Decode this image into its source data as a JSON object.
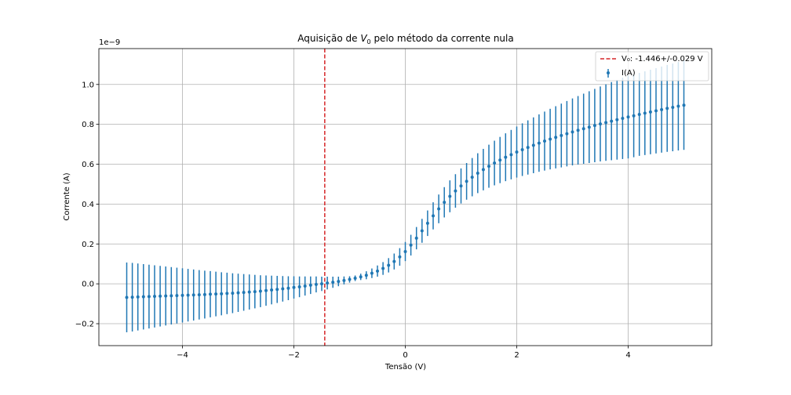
{
  "chart_data": {
    "type": "scatter",
    "title": "Aquisição de V₀ pelo método da corrente nula",
    "xlabel": "Tensão (V)",
    "ylabel": "Corrente (A)",
    "y_offset_text": "1e−9",
    "xlim": [
      -5.5,
      5.5
    ],
    "ylim": [
      -0.31,
      1.18
    ],
    "xticks": [
      -4,
      -2,
      0,
      2,
      4
    ],
    "xtick_labels": [
      "−4",
      "−2",
      "0",
      "2",
      "4"
    ],
    "yticks": [
      -0.2,
      0.0,
      0.2,
      0.4,
      0.6,
      0.8,
      1.0
    ],
    "ytick_labels": [
      "−0.2",
      "0.0",
      "0.2",
      "0.4",
      "0.6",
      "0.8",
      "1.0"
    ],
    "grid": true,
    "legend_position": "top-right",
    "colors": {
      "series": "#1f77b4",
      "vline": "#d62728",
      "grid": "#b0b0b0"
    },
    "vline": {
      "x": -1.446,
      "label": "V₀: -1.446+/-0.029 V"
    },
    "series": [
      {
        "name": "I(A)",
        "x": [
          -5.0,
          -4.9,
          -4.8,
          -4.7,
          -4.6,
          -4.5,
          -4.4,
          -4.3,
          -4.2,
          -4.1,
          -4.0,
          -3.9,
          -3.8,
          -3.7,
          -3.6,
          -3.5,
          -3.4,
          -3.3,
          -3.2,
          -3.1,
          -3.0,
          -2.9,
          -2.8,
          -2.7,
          -2.6,
          -2.5,
          -2.4,
          -2.3,
          -2.2,
          -2.1,
          -2.0,
          -1.9,
          -1.8,
          -1.7,
          -1.6,
          -1.5,
          -1.4,
          -1.3,
          -1.2,
          -1.1,
          -1.0,
          -0.9,
          -0.8,
          -0.7,
          -0.6,
          -0.5,
          -0.4,
          -0.3,
          -0.2,
          -0.1,
          0.0,
          0.1,
          0.2,
          0.3,
          0.4,
          0.5,
          0.6,
          0.7,
          0.8,
          0.9,
          1.0,
          1.1,
          1.2,
          1.3,
          1.4,
          1.5,
          1.6,
          1.7,
          1.8,
          1.9,
          2.0,
          2.1,
          2.2,
          2.3,
          2.4,
          2.5,
          2.6,
          2.7,
          2.8,
          2.9,
          3.0,
          3.1,
          3.2,
          3.3,
          3.4,
          3.5,
          3.6,
          3.7,
          3.8,
          3.9,
          4.0,
          4.1,
          4.2,
          4.3,
          4.4,
          4.5,
          4.6,
          4.7,
          4.8,
          4.9,
          5.0
        ],
        "y": [
          -0.068,
          -0.067,
          -0.066,
          -0.065,
          -0.064,
          -0.063,
          -0.062,
          -0.061,
          -0.06,
          -0.059,
          -0.058,
          -0.057,
          -0.056,
          -0.055,
          -0.054,
          -0.052,
          -0.051,
          -0.05,
          -0.048,
          -0.047,
          -0.045,
          -0.043,
          -0.041,
          -0.039,
          -0.037,
          -0.034,
          -0.031,
          -0.028,
          -0.025,
          -0.022,
          -0.018,
          -0.015,
          -0.011,
          -0.007,
          -0.003,
          0.0,
          0.004,
          0.008,
          0.012,
          0.017,
          0.022,
          0.028,
          0.035,
          0.043,
          0.053,
          0.064,
          0.077,
          0.093,
          0.112,
          0.135,
          0.162,
          0.194,
          0.229,
          0.266,
          0.304,
          0.341,
          0.376,
          0.409,
          0.439,
          0.466,
          0.491,
          0.514,
          0.535,
          0.555,
          0.573,
          0.59,
          0.606,
          0.621,
          0.635,
          0.648,
          0.661,
          0.673,
          0.684,
          0.695,
          0.706,
          0.716,
          0.726,
          0.735,
          0.744,
          0.753,
          0.762,
          0.77,
          0.778,
          0.786,
          0.794,
          0.802,
          0.809,
          0.816,
          0.823,
          0.83,
          0.837,
          0.843,
          0.85,
          0.856,
          0.862,
          0.868,
          0.874,
          0.88,
          0.885,
          0.891,
          0.896
        ],
        "yerr": [
          0.175,
          0.172,
          0.168,
          0.164,
          0.16,
          0.156,
          0.152,
          0.148,
          0.144,
          0.14,
          0.136,
          0.132,
          0.128,
          0.124,
          0.12,
          0.116,
          0.112,
          0.108,
          0.104,
          0.1,
          0.096,
          0.092,
          0.088,
          0.084,
          0.08,
          0.076,
          0.072,
          0.068,
          0.064,
          0.06,
          0.056,
          0.052,
          0.048,
          0.044,
          0.04,
          0.036,
          0.032,
          0.028,
          0.024,
          0.02,
          0.016,
          0.014,
          0.016,
          0.02,
          0.024,
          0.028,
          0.032,
          0.036,
          0.04,
          0.044,
          0.048,
          0.052,
          0.056,
          0.06,
          0.064,
          0.068,
          0.072,
          0.076,
          0.08,
          0.084,
          0.088,
          0.092,
          0.096,
          0.1,
          0.104,
          0.108,
          0.112,
          0.116,
          0.12,
          0.124,
          0.128,
          0.132,
          0.136,
          0.14,
          0.144,
          0.148,
          0.152,
          0.156,
          0.16,
          0.164,
          0.168,
          0.172,
          0.176,
          0.18,
          0.184,
          0.188,
          0.192,
          0.196,
          0.2,
          0.204,
          0.208,
          0.208,
          0.208,
          0.21,
          0.212,
          0.214,
          0.216,
          0.218,
          0.22,
          0.222,
          0.224
        ]
      }
    ]
  }
}
